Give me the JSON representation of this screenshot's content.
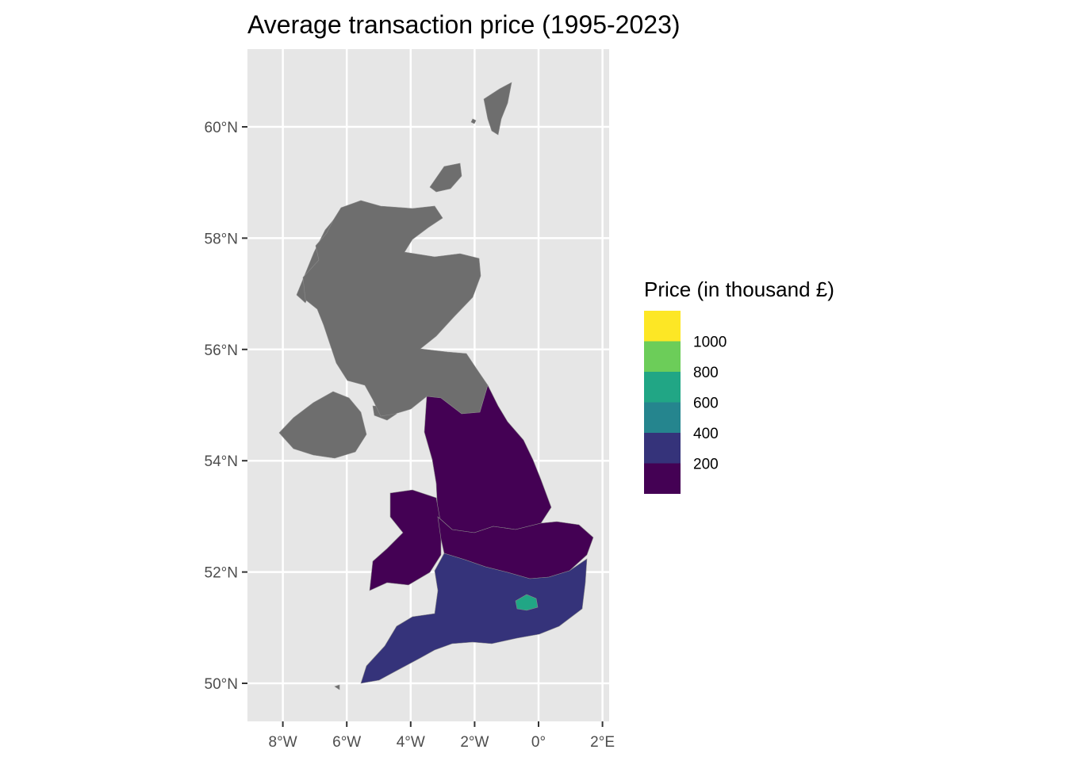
{
  "chart_data": {
    "type": "choropleth-map",
    "title": "Average transaction price (1995-2023)",
    "x_axis": {
      "range_deg": [
        -9.0,
        2.2
      ],
      "ticks": [
        {
          "value": -8,
          "label": "8°W"
        },
        {
          "value": -6,
          "label": "6°W"
        },
        {
          "value": -4,
          "label": "4°W"
        },
        {
          "value": -2,
          "label": "2°W"
        },
        {
          "value": 0,
          "label": "0°"
        },
        {
          "value": 2,
          "label": "2°E"
        }
      ]
    },
    "y_axis": {
      "range_deg": [
        49.7,
        61.4
      ],
      "ticks": [
        {
          "value": 50,
          "label": "50°N"
        },
        {
          "value": 52,
          "label": "52°N"
        },
        {
          "value": 54,
          "label": "54°N"
        },
        {
          "value": 56,
          "label": "56°N"
        },
        {
          "value": 58,
          "label": "58°N"
        },
        {
          "value": 60,
          "label": "60°N"
        }
      ]
    },
    "grid": true,
    "legend": {
      "title": "Price (in thousand £)",
      "position": "right",
      "bins": [
        {
          "label": "",
          "color": "#fde725"
        },
        {
          "label": "1000",
          "color": "#6ccd59"
        },
        {
          "label": "800",
          "color": "#21a685"
        },
        {
          "label": "600",
          "color": "#25858e"
        },
        {
          "label": "400",
          "color": "#35337a"
        },
        {
          "label": "200",
          "color": "#440154"
        }
      ]
    },
    "no_data_color": "#6e6e6e",
    "regions": [
      {
        "name": "Scotland",
        "value": null
      },
      {
        "name": "Northern Ireland",
        "value": null
      },
      {
        "name": "North England",
        "value": 150
      },
      {
        "name": "Wales",
        "value": 150
      },
      {
        "name": "Midlands",
        "value": 170
      },
      {
        "name": "South England",
        "value": 300
      },
      {
        "name": "London",
        "value": 650
      }
    ]
  }
}
